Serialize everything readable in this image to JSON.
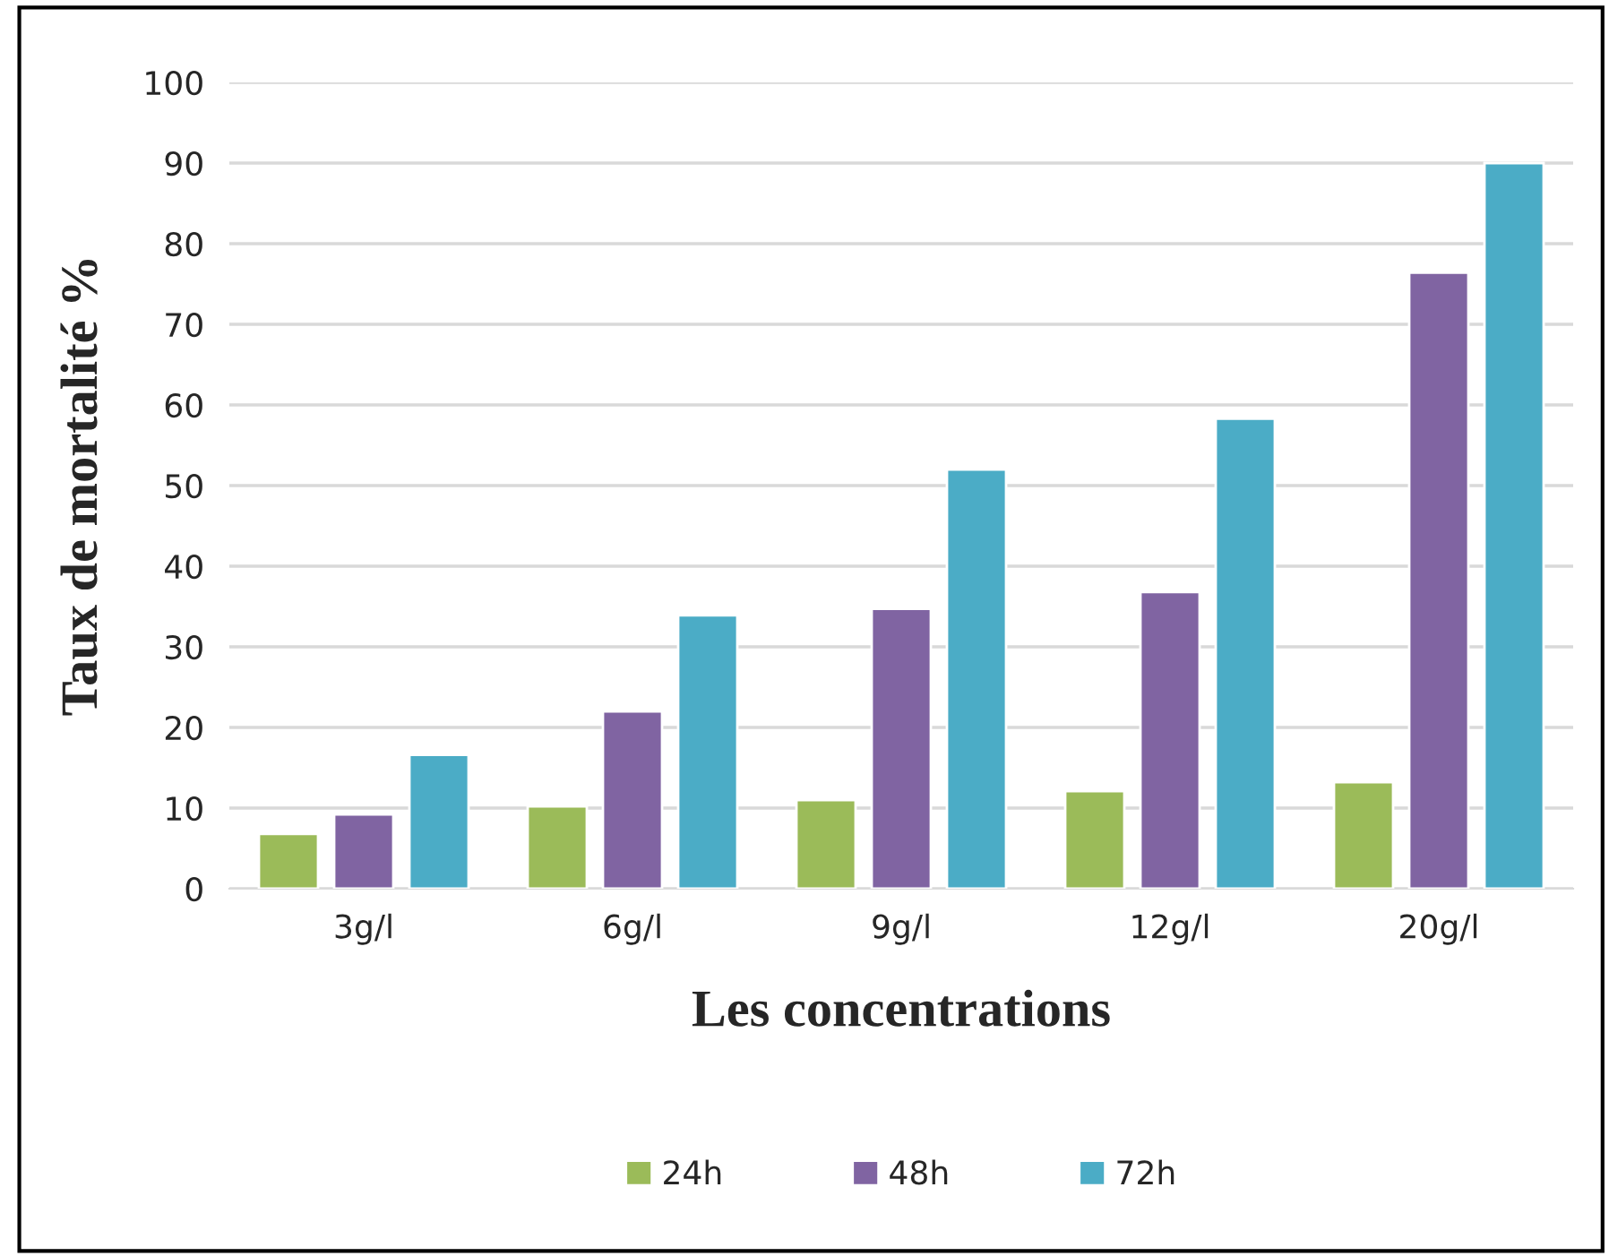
{
  "chart_data": {
    "type": "bar",
    "xlabel": "Les concentrations",
    "ylabel": "Taux de mortalité %",
    "categories": [
      "3g/l",
      "6g/l",
      "9g/l",
      "12g/l",
      "20g/l"
    ],
    "series": [
      {
        "name": "24h",
        "color": "#9bbb59",
        "values": [
          6.8,
          10.2,
          11,
          12.1,
          13.2
        ]
      },
      {
        "name": "48h",
        "color": "#8064a2",
        "values": [
          9.2,
          22,
          34.7,
          36.8,
          76.4
        ]
      },
      {
        "name": "72h",
        "color": "#4bacc6",
        "values": [
          16.6,
          33.9,
          52,
          58.3,
          90
        ]
      }
    ],
    "ylim": [
      0,
      100
    ],
    "yticks": [
      0,
      10,
      20,
      30,
      40,
      50,
      60,
      70,
      80,
      90,
      100
    ],
    "grid": "y",
    "legend": "bottom"
  }
}
